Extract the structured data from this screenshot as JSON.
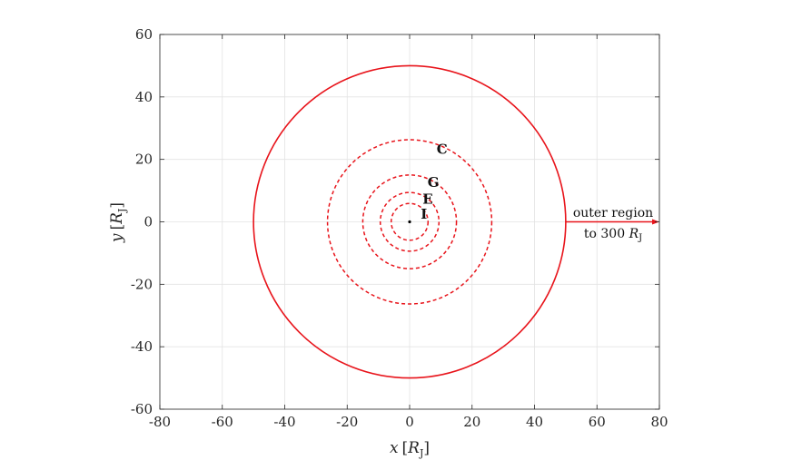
{
  "chart_data": {
    "type": "line",
    "title": "",
    "xlabel": "x [R_J]",
    "ylabel": "y [R_J]",
    "xlabel_parts": {
      "var": "x",
      "open": "[",
      "main": "R",
      "sub": "J",
      "close": "]"
    },
    "ylabel_parts": {
      "var": "y",
      "open": "[",
      "main": "R",
      "sub": "J",
      "close": "]"
    },
    "xlim": [
      -80,
      80
    ],
    "ylim": [
      -60,
      60
    ],
    "xticks": [
      -80,
      -60,
      -40,
      -20,
      0,
      20,
      40,
      60,
      80
    ],
    "yticks": [
      -60,
      -40,
      -20,
      0,
      20,
      40,
      60
    ],
    "xtick_labels": [
      "-80",
      "-60",
      "-40",
      "-20",
      "0",
      "20",
      "40",
      "60",
      "80"
    ],
    "ytick_labels": [
      "-60",
      "-40",
      "-20",
      "0",
      "20",
      "40",
      "60"
    ],
    "grid": true,
    "center": [
      0,
      0
    ],
    "boundary": {
      "radius": 50,
      "style": "solid",
      "color": "#e8141b"
    },
    "orbits": [
      {
        "name": "I",
        "radius": 5.9,
        "style": "dashed",
        "label_pos": [
          4.6,
          2.4
        ]
      },
      {
        "name": "E",
        "radius": 9.4,
        "style": "dashed",
        "label_pos": [
          5.8,
          7.2
        ]
      },
      {
        "name": "G",
        "radius": 15.0,
        "style": "dashed",
        "label_pos": [
          7.6,
          12.6
        ]
      },
      {
        "name": "C",
        "radius": 26.3,
        "style": "dashed",
        "label_pos": [
          10.4,
          23.3
        ]
      }
    ],
    "orbit_color": "#e8141b",
    "arrow": {
      "from": [
        50,
        0
      ],
      "to": [
        80,
        0
      ],
      "color": "#e8141b"
    },
    "annotation": {
      "line1": "outer region",
      "line2_prefix": "to 300 ",
      "line2_main": "R",
      "line2_sub": "J",
      "pos": [
        66.5,
        3
      ]
    }
  }
}
